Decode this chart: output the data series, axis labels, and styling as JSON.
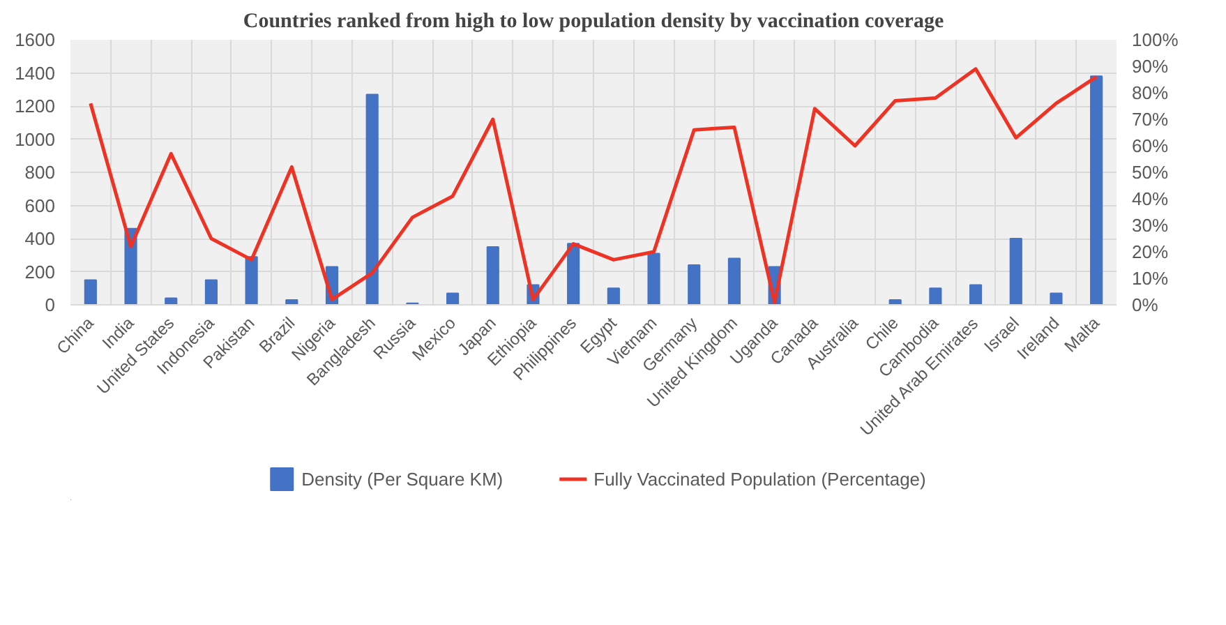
{
  "chart_data": {
    "type": "bar",
    "title": "Countries ranked from high to low population density by vaccination coverage",
    "categories": [
      "China",
      "India",
      "United States",
      "Indonesia",
      "Pakistan",
      "Brazil",
      "Nigeria",
      "Bangladesh",
      "Russia",
      "Mexico",
      "Japan",
      "Ethiopia",
      "Philippines",
      "Egypt",
      "Vietnam",
      "Germany",
      "United Kingdom",
      "Uganda",
      "Canada",
      "Australia",
      "Chile",
      "Cambodia",
      "United Arab Emirates",
      "Israel",
      "Ireland",
      "Malta"
    ],
    "series": [
      {
        "name": "Density (Per Square KM)",
        "color": "#4472c4",
        "values": [
          150,
          460,
          40,
          150,
          290,
          30,
          230,
          1270,
          10,
          70,
          350,
          120,
          370,
          100,
          310,
          240,
          280,
          230,
          null,
          null,
          30,
          100,
          120,
          400,
          70,
          1380
        ]
      },
      {
        "name": "Fully Vaccinated Population (Percentage)",
        "type": "line",
        "axis": "y2",
        "color": "#ee3224",
        "values": [
          76,
          22,
          57,
          25,
          17,
          52,
          2,
          12,
          33,
          41,
          70,
          2,
          23,
          17,
          20,
          66,
          67,
          1,
          74,
          60,
          77,
          78,
          89,
          63,
          76,
          86
        ]
      }
    ],
    "ylim": [
      0,
      1600
    ],
    "yticks": [
      0,
      200,
      400,
      600,
      800,
      1000,
      1200,
      1400,
      1600
    ],
    "y2lim": [
      0,
      100
    ],
    "y2ticks": [
      {
        "value": 0,
        "label": "0%"
      },
      {
        "value": 10,
        "label": "10%"
      },
      {
        "value": 20,
        "label": "20%"
      },
      {
        "value": 30,
        "label": "30%"
      },
      {
        "value": 40,
        "label": "40%"
      },
      {
        "value": 50,
        "label": "50%"
      },
      {
        "value": 60,
        "label": "60%"
      },
      {
        "value": 70,
        "label": "70%"
      },
      {
        "value": 80,
        "label": "80%"
      },
      {
        "value": 90,
        "label": "90%"
      },
      {
        "value": 100,
        "label": "100%"
      }
    ],
    "grid": true,
    "legend": "bottom"
  }
}
